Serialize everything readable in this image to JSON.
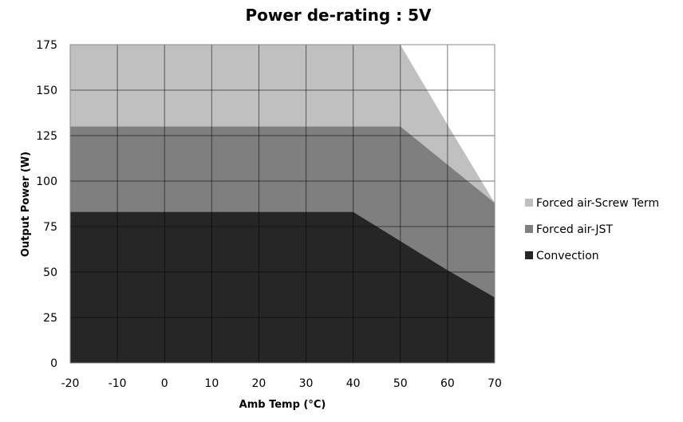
{
  "chart_data": {
    "type": "area",
    "title": "Power de-rating : 5V",
    "xlabel": "Amb Temp (°C)",
    "ylabel": "Output Power (W)",
    "x": [
      -20,
      -10,
      0,
      10,
      20,
      30,
      40,
      50,
      60,
      70
    ],
    "xlim": [
      -20,
      70
    ],
    "ylim": [
      0,
      175
    ],
    "xticks": [
      "-20",
      "-10",
      "0",
      "10",
      "20",
      "30",
      "40",
      "50",
      "60",
      "70"
    ],
    "yticks": [
      "0",
      "25",
      "50",
      "75",
      "100",
      "125",
      "150",
      "175"
    ],
    "grid": true,
    "legend_position": "right",
    "series": [
      {
        "name": "Forced air-Screw Term",
        "color": "#c0c0c0",
        "values": [
          175,
          175,
          175,
          175,
          175,
          175,
          175,
          175,
          131,
          88
        ]
      },
      {
        "name": "Forced air-JST",
        "color": "#7f7f7f",
        "values": [
          130,
          130,
          130,
          130,
          130,
          130,
          130,
          130,
          109,
          88
        ]
      },
      {
        "name": "Convection",
        "color": "#262626",
        "values": [
          83,
          83,
          83,
          83,
          83,
          83,
          83,
          67,
          51,
          36
        ]
      }
    ]
  }
}
